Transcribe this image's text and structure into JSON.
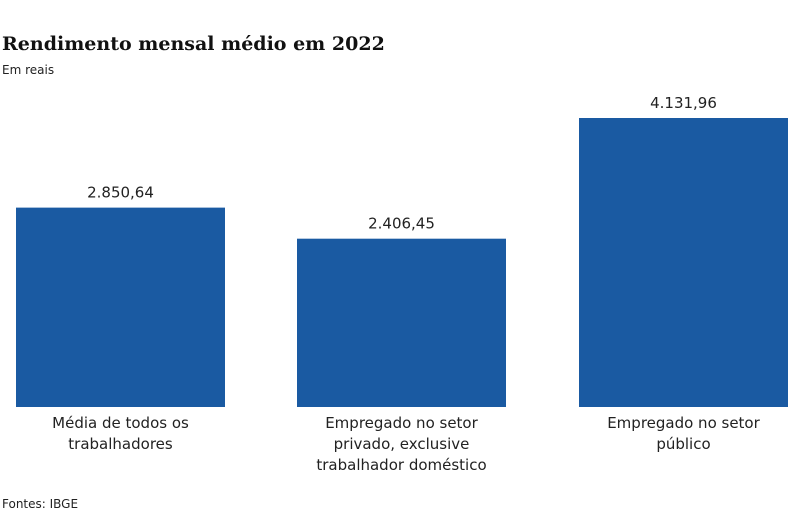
{
  "chart_data": {
    "type": "bar",
    "title": "Rendimento mensal médio em 2022",
    "subtitle": "Em reais",
    "categories": [
      "Média de todos os trabalhadores",
      "Empregado no setor privado, exclusive trabalhador doméstico",
      "Empregado no setor público"
    ],
    "values": [
      2850.64,
      2406.45,
      4131.96
    ],
    "value_labels": [
      "2.850,64",
      "2.406,45",
      "4.131,96"
    ],
    "color": "#1a5aa2",
    "source": "Fontes: IBGE"
  }
}
